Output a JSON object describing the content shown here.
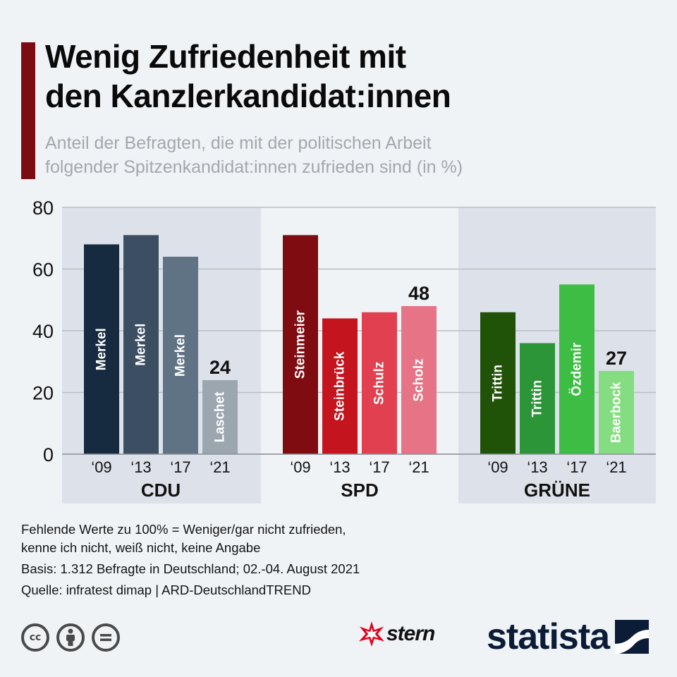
{
  "title": {
    "line1": "Wenig Zufriedenheit mit",
    "line2": "den Kanzlerkandidat:innen"
  },
  "subtitle": {
    "line1": "Anteil der Befragten, die mit der politischen Arbeit",
    "line2": "folgender Spitzenkandidat:innen zufrieden sind (in %)"
  },
  "chart_data": {
    "type": "bar",
    "ylabel": "%",
    "ylim": [
      0,
      80
    ],
    "yticks": [
      "0",
      "20",
      "40",
      "60",
      "80"
    ],
    "grid": true,
    "groups": [
      {
        "name": "CDU",
        "bars": [
          {
            "year": "‘09",
            "candidate": "Merkel",
            "value": 68,
            "color": "#162b40"
          },
          {
            "year": "‘13",
            "candidate": "Merkel",
            "value": 71,
            "color": "#3c4f62"
          },
          {
            "year": "‘17",
            "candidate": "Merkel",
            "value": 64,
            "color": "#607384"
          },
          {
            "year": "‘21",
            "candidate": "Laschet",
            "value": 24,
            "color": "#9ba6af",
            "label": "24"
          }
        ]
      },
      {
        "name": "SPD",
        "bars": [
          {
            "year": "‘09",
            "candidate": "Steinmeier",
            "value": 71,
            "color": "#7f0c10"
          },
          {
            "year": "‘13",
            "candidate": "Steinbrück",
            "value": 44,
            "color": "#c4141d"
          },
          {
            "year": "‘17",
            "candidate": "Schulz",
            "value": 46,
            "color": "#e0404f"
          },
          {
            "year": "‘21",
            "candidate": "Scholz",
            "value": 48,
            "color": "#e67486",
            "label": "48"
          }
        ]
      },
      {
        "name": "GRÜNE",
        "bars": [
          {
            "year": "‘09",
            "candidate": "Trittin",
            "value": 46,
            "color": "#205208"
          },
          {
            "year": "‘13",
            "candidate": "Trittin",
            "value": 36,
            "color": "#2c9538"
          },
          {
            "year": "‘17",
            "candidate": "Özdemir",
            "value": 55,
            "color": "#3ebd45"
          },
          {
            "year": "‘21",
            "candidate": "Baerbock",
            "value": 27,
            "color": "#84dd80",
            "label": "27"
          }
        ]
      }
    ]
  },
  "notes": {
    "line1": "Fehlende Werte zu 100% = Weniger/gar nicht zufrieden,",
    "line2": "kenne ich nicht, weiß nicht, keine Angabe",
    "line3": "Basis: 1.312 Befragte in Deutschland; 02.-04. August 2021",
    "line4": "Quelle: infratest dimap | ARD-DeutschlandTREND"
  },
  "license_icons": [
    "cc-icon",
    "by-attribution-icon",
    "nd-equals-icon"
  ],
  "logos": {
    "stern": "stern",
    "statista": "statista"
  },
  "colors": {
    "background": "#f0f3f6",
    "accent": "#7b0d12",
    "group_band": "#dde2ea",
    "statista_navy": "#0b1c36",
    "stern_red": "#e3001b"
  }
}
